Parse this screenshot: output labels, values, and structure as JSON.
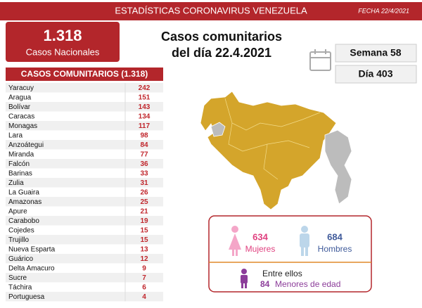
{
  "header": {
    "title": "ESTADÍSTICAS CORONAVIRUS VENEZUELA",
    "date": "FECHA 22/4/2021"
  },
  "total": {
    "value": "1.318",
    "label": "Casos Nacionales"
  },
  "subtitle": [
    "Casos comunitarios",
    "del día 22.4.2021"
  ],
  "week": "Semana 58",
  "day": "Día 403",
  "table": {
    "title": "CASOS COMUNITARIOS (1.318)",
    "rows": [
      [
        "Yaracuy",
        242
      ],
      [
        "Aragua",
        151
      ],
      [
        "Bolívar",
        143
      ],
      [
        "Caracas",
        134
      ],
      [
        "Monagas",
        117
      ],
      [
        "Lara",
        98
      ],
      [
        "Anzoátegui",
        84
      ],
      [
        "Miranda",
        77
      ],
      [
        "Falcón",
        36
      ],
      [
        "Barinas",
        33
      ],
      [
        "Zulia",
        31
      ],
      [
        "La Guaira",
        26
      ],
      [
        "Amazonas",
        25
      ],
      [
        "Apure",
        21
      ],
      [
        "Carabobo",
        19
      ],
      [
        "Cojedes",
        15
      ],
      [
        "Trujillo",
        15
      ],
      [
        "Nueva Esparta",
        13
      ],
      [
        "Guárico",
        12
      ],
      [
        "Delta Amacuro",
        9
      ],
      [
        "Sucre",
        7
      ],
      [
        "Táchira",
        6
      ],
      [
        "Portuguesa",
        4
      ]
    ]
  },
  "gender": {
    "women": {
      "value": 634,
      "label": "Mujeres"
    },
    "men": {
      "value": 684,
      "label": "Hombres"
    },
    "minors_intro": "Entre ellos",
    "minors_value": 84,
    "minors_label": "Menores de edad"
  }
}
